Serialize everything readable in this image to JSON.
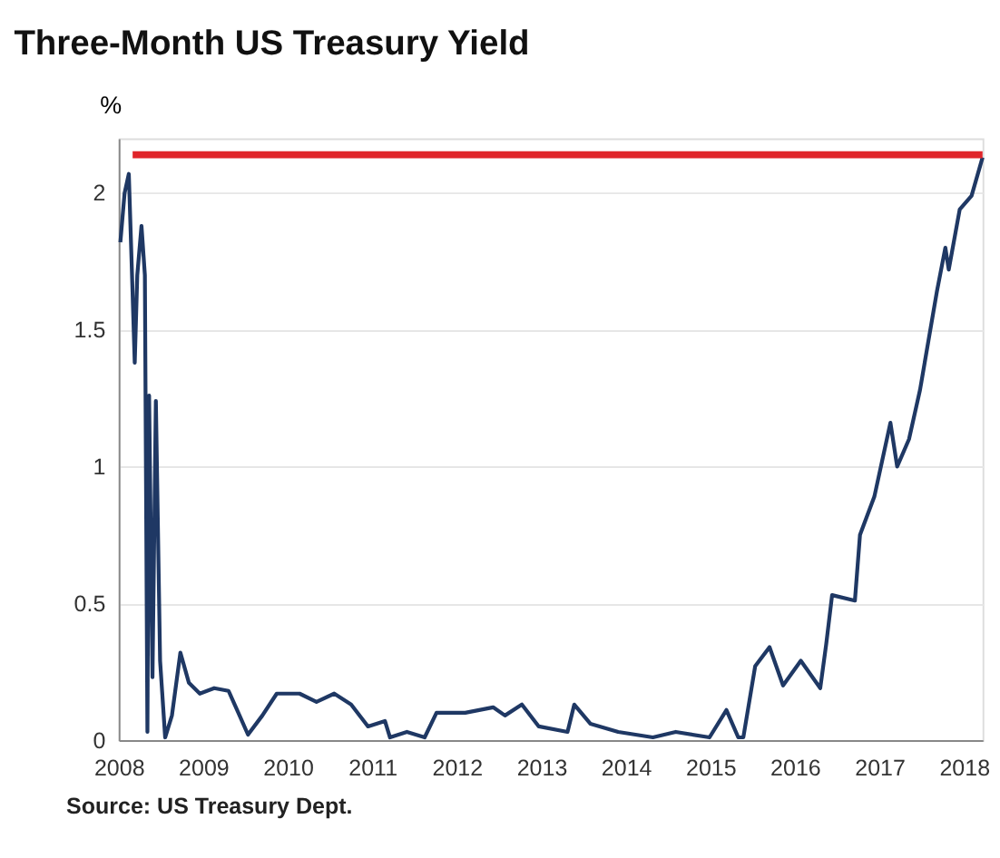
{
  "chart_data": {
    "type": "line",
    "title": "Three-Month US Treasury Yield",
    "ylabel": "%",
    "annotations": [
      "Source: US Treasury Dept."
    ],
    "x": [
      2008.02,
      2008.07,
      2008.12,
      2008.16,
      2008.19,
      2008.22,
      2008.27,
      2008.31,
      2008.34,
      2008.36,
      2008.4,
      2008.44,
      2008.49,
      2008.55,
      2008.63,
      2008.73,
      2008.83,
      2008.96,
      2009.13,
      2009.3,
      2009.43,
      2009.53,
      2009.7,
      2009.87,
      2010.14,
      2010.34,
      2010.55,
      2010.75,
      2010.95,
      2011.15,
      2011.21,
      2011.41,
      2011.62,
      2011.76,
      2012.1,
      2012.43,
      2012.57,
      2012.77,
      2012.97,
      2013.31,
      2013.39,
      2013.58,
      2013.91,
      2014.32,
      2014.59,
      2014.99,
      2015.19,
      2015.33,
      2015.39,
      2015.53,
      2015.7,
      2015.86,
      2016.07,
      2016.3,
      2016.37,
      2016.44,
      2016.71,
      2016.77,
      2016.94,
      2017.13,
      2017.21,
      2017.35,
      2017.48,
      2017.58,
      2017.68,
      2017.78,
      2017.82,
      2017.95,
      2018.09,
      2018.22
    ],
    "series": [
      {
        "color": "#1f3864",
        "values": [
          1.82,
          2.0,
          2.07,
          1.68,
          1.38,
          1.7,
          1.88,
          1.7,
          0.03,
          1.26,
          0.23,
          1.24,
          0.29,
          0.01,
          0.09,
          0.32,
          0.21,
          0.17,
          0.19,
          0.18,
          0.09,
          0.02,
          0.09,
          0.17,
          0.17,
          0.14,
          0.17,
          0.13,
          0.05,
          0.07,
          0.01,
          0.03,
          0.01,
          0.1,
          0.1,
          0.12,
          0.09,
          0.13,
          0.05,
          0.03,
          0.13,
          0.06,
          0.03,
          0.01,
          0.03,
          0.01,
          0.11,
          0.01,
          0.01,
          0.27,
          0.34,
          0.2,
          0.29,
          0.19,
          0.35,
          0.53,
          0.51,
          0.75,
          0.89,
          1.16,
          1.0,
          1.1,
          1.28,
          1.46,
          1.64,
          1.8,
          1.72,
          1.94,
          1.99,
          2.13
        ]
      }
    ],
    "xlim": [
      2008,
      2018.22
    ],
    "xticks": [
      2008,
      2009,
      2010,
      2011,
      2012,
      2013,
      2014,
      2015,
      2016,
      2017,
      2018
    ],
    "ylim": [
      0,
      2.2
    ],
    "yticks": [
      0,
      0.5,
      1,
      1.5,
      2
    ],
    "grid": "y",
    "ref_lines": [
      {
        "axis": "y",
        "value": 2.14,
        "color": "#e0252a"
      }
    ]
  }
}
